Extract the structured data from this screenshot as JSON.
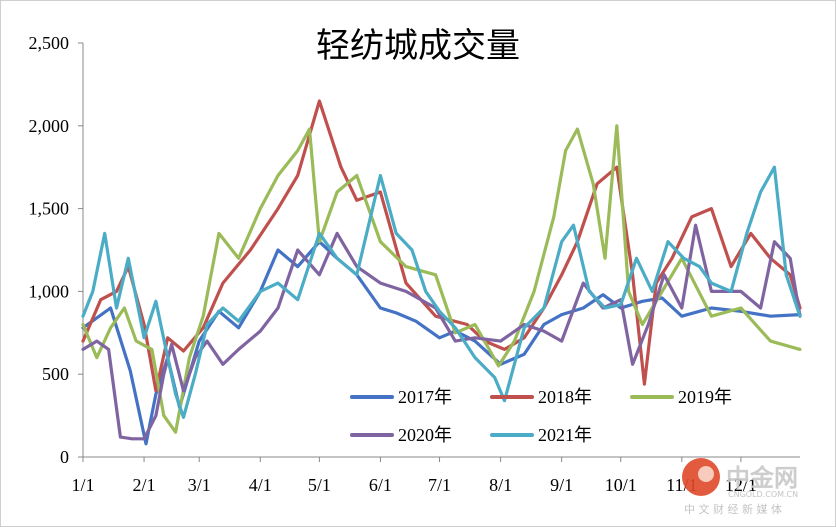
{
  "chart_data": {
    "type": "line",
    "title": "轻纺城成交量",
    "xlabel": "",
    "ylabel": "",
    "ylim": [
      0,
      2500
    ],
    "xlim": [
      1,
      365
    ],
    "y_ticks": [
      {
        "value": 0,
        "label": "0"
      },
      {
        "value": 500,
        "label": "500"
      },
      {
        "value": 1000,
        "label": "1,000"
      },
      {
        "value": 1500,
        "label": "1,500"
      },
      {
        "value": 2000,
        "label": "2,000"
      },
      {
        "value": 2500,
        "label": "2,500"
      }
    ],
    "x_ticks": [
      {
        "day": 1,
        "label": "1/1"
      },
      {
        "day": 32,
        "label": "2/1"
      },
      {
        "day": 60,
        "label": "3/1"
      },
      {
        "day": 91,
        "label": "4/1"
      },
      {
        "day": 121,
        "label": "5/1"
      },
      {
        "day": 152,
        "label": "6/1"
      },
      {
        "day": 182,
        "label": "7/1"
      },
      {
        "day": 213,
        "label": "8/1"
      },
      {
        "day": 244,
        "label": "9/1"
      },
      {
        "day": 274,
        "label": "10/1"
      },
      {
        "day": 305,
        "label": "11/1"
      },
      {
        "day": 335,
        "label": "12/1"
      }
    ],
    "legend_position": "bottom-inside",
    "series": [
      {
        "name": "2017年",
        "color": "#4472C4",
        "x": [
          1,
          15,
          25,
          33,
          38,
          44,
          50,
          60,
          70,
          80,
          91,
          100,
          110,
          121,
          130,
          140,
          152,
          160,
          170,
          182,
          190,
          200,
          213,
          225,
          235,
          244,
          255,
          265,
          274,
          285,
          295,
          305,
          320,
          335,
          350,
          365
        ],
        "y": [
          780,
          900,
          520,
          80,
          380,
          600,
          300,
          700,
          880,
          780,
          1000,
          1250,
          1150,
          1300,
          1200,
          1100,
          900,
          870,
          820,
          720,
          760,
          700,
          560,
          620,
          800,
          860,
          900,
          980,
          900,
          940,
          960,
          850,
          900,
          880,
          850,
          860
        ]
      },
      {
        "name": "2018年",
        "color": "#C0504D",
        "x": [
          1,
          10,
          18,
          24,
          32,
          38,
          44,
          52,
          62,
          72,
          86,
          100,
          110,
          121,
          132,
          140,
          152,
          165,
          180,
          196,
          205,
          215,
          225,
          235,
          244,
          252,
          262,
          272,
          280,
          286,
          292,
          300,
          310,
          320,
          330,
          340,
          350,
          360,
          365
        ],
        "y": [
          700,
          950,
          1000,
          1150,
          800,
          400,
          720,
          640,
          780,
          1050,
          1250,
          1500,
          1700,
          2150,
          1750,
          1550,
          1600,
          1050,
          850,
          800,
          700,
          650,
          720,
          900,
          1100,
          1300,
          1650,
          1750,
          1100,
          440,
          1050,
          1200,
          1450,
          1500,
          1150,
          1350,
          1200,
          1100,
          900
        ]
      },
      {
        "name": "2019年",
        "color": "#9BBB59",
        "x": [
          1,
          8,
          15,
          22,
          28,
          36,
          42,
          48,
          55,
          62,
          70,
          80,
          91,
          100,
          110,
          116,
          121,
          130,
          140,
          152,
          165,
          180,
          190,
          200,
          212,
          220,
          230,
          240,
          246,
          252,
          260,
          266,
          272,
          278,
          285,
          295,
          305,
          320,
          335,
          350,
          365
        ],
        "y": [
          800,
          600,
          780,
          900,
          700,
          650,
          250,
          150,
          600,
          850,
          1350,
          1200,
          1500,
          1700,
          1850,
          1980,
          1300,
          1600,
          1700,
          1300,
          1150,
          1100,
          750,
          800,
          550,
          700,
          1000,
          1450,
          1850,
          1980,
          1650,
          1200,
          2000,
          1000,
          800,
          1000,
          1200,
          850,
          900,
          700,
          650
        ]
      },
      {
        "name": "2020年",
        "color": "#8064A2",
        "x": [
          1,
          8,
          14,
          20,
          26,
          32,
          38,
          42,
          46,
          52,
          58,
          64,
          72,
          80,
          91,
          100,
          110,
          121,
          130,
          140,
          152,
          165,
          180,
          190,
          200,
          213,
          225,
          235,
          244,
          255,
          265,
          274,
          280,
          288,
          296,
          305,
          312,
          320,
          335,
          345,
          352,
          360,
          365
        ],
        "y": [
          650,
          700,
          650,
          120,
          110,
          110,
          250,
          500,
          680,
          400,
          600,
          700,
          560,
          650,
          760,
          900,
          1250,
          1100,
          1350,
          1150,
          1050,
          1000,
          900,
          700,
          720,
          700,
          800,
          760,
          700,
          1050,
          900,
          950,
          560,
          800,
          1100,
          900,
          1400,
          1000,
          1000,
          900,
          1300,
          1200,
          850
        ]
      },
      {
        "name": "2021年",
        "color": "#4BACC6",
        "x": [
          1,
          6,
          12,
          18,
          24,
          32,
          38,
          44,
          48,
          52,
          58,
          64,
          72,
          80,
          91,
          100,
          110,
          121,
          130,
          140,
          152,
          160,
          168,
          175,
          182,
          190,
          200,
          210,
          215,
          225,
          235,
          244,
          250,
          258,
          266,
          274,
          282,
          290,
          298,
          306,
          314,
          320,
          330,
          338,
          345,
          352,
          358,
          365
        ],
        "y": [
          850,
          1000,
          1350,
          900,
          1200,
          720,
          940,
          600,
          380,
          240,
          500,
          800,
          900,
          820,
          1000,
          1050,
          950,
          1350,
          1200,
          1100,
          1700,
          1350,
          1250,
          1000,
          880,
          780,
          600,
          480,
          340,
          780,
          900,
          1300,
          1400,
          1000,
          900,
          920,
          1200,
          1000,
          1300,
          1200,
          1150,
          1050,
          1000,
          1350,
          1600,
          1750,
          1100,
          850
        ]
      }
    ]
  },
  "watermark": {
    "brand": "中金网",
    "url": "CNGOLD.COM.CN",
    "slogan": "中 文 财 经 新 媒 体"
  }
}
